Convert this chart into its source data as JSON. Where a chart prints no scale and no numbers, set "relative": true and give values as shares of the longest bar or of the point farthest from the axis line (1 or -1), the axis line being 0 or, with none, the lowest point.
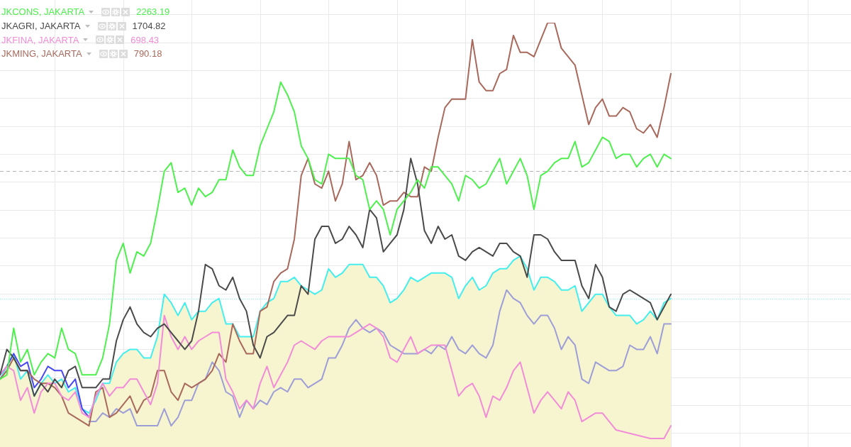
{
  "chart_data": {
    "type": "line",
    "relative": true,
    "marker": "none",
    "grid": true,
    "tick_labels": false,
    "legend": "top left",
    "categories": [
      null,
      null,
      null,
      null,
      null,
      null,
      null,
      null,
      null,
      null,
      null,
      null,
      null,
      null,
      null,
      null,
      null,
      null,
      null,
      null,
      null,
      null,
      null,
      null,
      null,
      null,
      null,
      null,
      null,
      null,
      null,
      null,
      null,
      null,
      null,
      null,
      null,
      null,
      null,
      null,
      null,
      null,
      null,
      null,
      null,
      null,
      null,
      null,
      null,
      null,
      null,
      null,
      null,
      null,
      null,
      null,
      null,
      null,
      null,
      null,
      null,
      null,
      null,
      null,
      null,
      null,
      null,
      null,
      null,
      null,
      null,
      null,
      null,
      null,
      null,
      null,
      null,
      null,
      null,
      null,
      null,
      null,
      null,
      null,
      null,
      null,
      null,
      null,
      null,
      null,
      null,
      null,
      null,
      null,
      null,
      null,
      null,
      null,
      null
    ],
    "series": [
      {
        "name": "JKCONS, JAKARTA",
        "color": "#4ef04e",
        "values": [
          0.16,
          0.17,
          0.28,
          0.2,
          0.23,
          0.17,
          0.2,
          0.22,
          0.21,
          0.28,
          0.23,
          0.22,
          0.17,
          0.17,
          0.17,
          0.21,
          0.29,
          0.44,
          0.48,
          0.41,
          0.46,
          0.45,
          0.48,
          0.56,
          0.65,
          0.67,
          0.6,
          0.61,
          0.57,
          0.61,
          0.59,
          0.6,
          0.63,
          0.63,
          0.7,
          0.66,
          0.64,
          0.64,
          0.71,
          0.75,
          0.79,
          0.86,
          0.83,
          0.79,
          0.71,
          0.68,
          0.63,
          0.62,
          0.69,
          0.68,
          0.68,
          0.68,
          0.64,
          0.63,
          0.56,
          0.58,
          0.56,
          0.5,
          0.56,
          0.58,
          0.6,
          0.63,
          0.61,
          0.66,
          0.66,
          0.64,
          0.62,
          0.58,
          0.64,
          0.63,
          0.61,
          0.62,
          0.65,
          0.68,
          0.62,
          0.65,
          0.68,
          0.64,
          0.56,
          0.64,
          0.65,
          0.67,
          0.68,
          0.68,
          0.72,
          0.66,
          0.67,
          0.7,
          0.73,
          0.72,
          0.68,
          0.69,
          0.69,
          0.66,
          0.68,
          0.69,
          0.66,
          0.69,
          0.68
        ]
      },
      {
        "name": "JKAGRI, JAKARTA",
        "color": "#4a4a4a",
        "values": [
          0.17,
          0.23,
          0.21,
          0.18,
          0.18,
          0.12,
          0.15,
          0.13,
          0.16,
          0.14,
          0.18,
          0.19,
          0.14,
          0.14,
          0.14,
          0.16,
          0.16,
          0.25,
          0.3,
          0.33,
          0.29,
          0.27,
          0.26,
          0.28,
          0.29,
          0.27,
          0.25,
          0.23,
          0.25,
          0.32,
          0.43,
          0.42,
          0.38,
          0.37,
          0.4,
          0.35,
          0.32,
          0.24,
          0.21,
          0.26,
          0.27,
          0.29,
          0.31,
          0.31,
          0.38,
          0.36,
          0.49,
          0.52,
          0.52,
          0.48,
          0.49,
          0.52,
          0.5,
          0.47,
          0.56,
          0.54,
          0.46,
          0.48,
          0.5,
          0.56,
          0.68,
          0.62,
          0.51,
          0.48,
          0.52,
          0.49,
          0.5,
          0.45,
          0.44,
          0.46,
          0.47,
          0.46,
          0.45,
          0.48,
          0.48,
          0.46,
          0.45,
          0.4,
          0.5,
          0.5,
          0.49,
          0.46,
          0.44,
          0.44,
          0.44,
          0.38,
          0.35,
          0.43,
          0.4,
          0.33,
          0.32,
          0.36,
          0.37,
          0.36,
          0.35,
          0.34,
          0.3,
          0.33,
          0.36
        ]
      },
      {
        "name": "JKFINA, JAKARTA",
        "color": "#f28cd8",
        "values": [
          0.17,
          0.19,
          0.18,
          0.11,
          0.14,
          0.08,
          0.13,
          0.15,
          0.15,
          0.12,
          0.11,
          0.13,
          0.08,
          0.07,
          0.12,
          0.15,
          0.12,
          0.14,
          0.14,
          0.16,
          0.16,
          0.13,
          0.1,
          0.15,
          0.31,
          0.26,
          0.23,
          0.26,
          0.23,
          0.25,
          0.26,
          0.27,
          0.27,
          0.16,
          0.13,
          0.09,
          0.11,
          0.09,
          0.15,
          0.19,
          0.14,
          0.17,
          0.2,
          0.24,
          0.25,
          0.24,
          0.23,
          0.25,
          0.26,
          0.26,
          0.26,
          0.26,
          0.27,
          0.28,
          0.29,
          0.28,
          0.26,
          0.21,
          0.2,
          0.23,
          0.26,
          0.22,
          0.23,
          0.24,
          0.24,
          0.24,
          0.18,
          0.12,
          0.14,
          0.15,
          0.12,
          0.07,
          0.12,
          0.11,
          0.14,
          0.18,
          0.2,
          0.14,
          0.08,
          0.11,
          0.13,
          0.11,
          0.09,
          0.13,
          0.11,
          0.06,
          0.07,
          0.08,
          0.08,
          0.06,
          0.04,
          null,
          null,
          null,
          null,
          0.02,
          null,
          0.02,
          0.05
        ]
      },
      {
        "name": "JKMING, JAKARTA",
        "color": "#a8695c",
        "values": [
          0.16,
          0.18,
          0.21,
          0.18,
          0.18,
          0.16,
          0.15,
          0.15,
          0.14,
          0.12,
          0.08,
          0.07,
          0.06,
          0.05,
          0.13,
          0.14,
          0.07,
          0.08,
          0.1,
          0.12,
          0.08,
          0.11,
          0.12,
          0.18,
          0.18,
          0.13,
          0.11,
          0.15,
          0.14,
          0.15,
          0.16,
          0.18,
          0.22,
          0.2,
          0.29,
          0.25,
          0.22,
          0.22,
          0.32,
          0.33,
          0.39,
          0.41,
          0.42,
          0.49,
          0.64,
          0.68,
          0.62,
          0.61,
          0.65,
          0.58,
          0.62,
          0.72,
          0.63,
          0.64,
          0.67,
          0.64,
          0.57,
          0.58,
          0.58,
          0.6,
          0.59,
          0.59,
          0.66,
          0.65,
          0.73,
          0.8,
          0.82,
          0.82,
          0.82,
          0.96,
          0.86,
          0.84,
          0.84,
          0.88,
          0.89,
          0.97,
          0.93,
          0.93,
          0.92,
          0.96,
          1,
          1,
          0.94,
          0.92,
          0.9,
          0.83,
          0.76,
          0.8,
          0.82,
          0.78,
          0.78,
          0.8,
          0.79,
          0.75,
          0.74,
          0.76,
          0.73,
          0.8,
          0.88
        ]
      },
      {
        "type": "area",
        "color": "#44eeee",
        "values": [
          0.16,
          0.19,
          0.22,
          0.16,
          0.18,
          0.12,
          0.15,
          0.17,
          0.15,
          0.16,
          0.13,
          0.14,
          0.09,
          0.08,
          0.11,
          0.15,
          0.15,
          0.2,
          0.22,
          0.23,
          0.23,
          0.21,
          0.21,
          0.26,
          0.36,
          0.34,
          0.31,
          0.34,
          0.3,
          0.32,
          0.32,
          0.34,
          0.35,
          0.29,
          0.29,
          0.26,
          0.26,
          0.26,
          0.32,
          0.34,
          0.35,
          0.39,
          0.39,
          0.4,
          0.38,
          0.37,
          0.36,
          0.37,
          0.42,
          0.4,
          0.41,
          0.43,
          0.43,
          0.43,
          0.4,
          0.4,
          0.38,
          0.34,
          0.35,
          0.37,
          0.4,
          0.39,
          0.4,
          0.41,
          0.41,
          0.41,
          0.4,
          0.35,
          0.38,
          0.4,
          0.37,
          0.38,
          0.41,
          0.42,
          0.42,
          0.44,
          0.45,
          0.42,
          0.37,
          0.4,
          0.4,
          0.39,
          0.37,
          0.37,
          0.38,
          0.32,
          0.34,
          0.36,
          0.36,
          0.33,
          0.31,
          0.31,
          0.31,
          0.29,
          0.3,
          0.32,
          0.3,
          0.34,
          0.35
        ]
      },
      {
        "color": "#9d9dd8",
        "values": [
          null,
          null,
          null,
          null,
          null,
          null,
          null,
          null,
          null,
          null,
          null,
          null,
          null,
          0.06,
          0.06,
          0.08,
          0.07,
          0.09,
          0.08,
          0.09,
          0.05,
          0.05,
          0.05,
          0.05,
          0.09,
          0.05,
          0.07,
          0.11,
          0.11,
          0.15,
          0.16,
          0.2,
          0.18,
          0.13,
          0.12,
          0.07,
          0.11,
          0.09,
          0.11,
          0.1,
          0.13,
          0.14,
          0.13,
          0.16,
          0.16,
          0.14,
          0.15,
          0.16,
          0.21,
          0.21,
          0.24,
          0.28,
          0.3,
          0.28,
          0.27,
          0.28,
          0.27,
          0.24,
          0.23,
          0.22,
          0.22,
          0.22,
          0.23,
          0.22,
          0.24,
          0.23,
          0.26,
          0.23,
          0.22,
          0.24,
          0.22,
          0.21,
          0.24,
          0.32,
          0.37,
          0.35,
          0.34,
          0.31,
          0.29,
          0.31,
          0.31,
          0.28,
          0.23,
          0.26,
          0.24,
          0.16,
          0.15,
          0.2,
          0.19,
          0.18,
          0.18,
          0.19,
          0.24,
          0.23,
          0.23,
          0.26,
          0.22,
          0.29,
          0.29
        ]
      },
      {
        "color": "#4848f0",
        "values": [
          0.17,
          0.19,
          0.22,
          0.19,
          0.2,
          0.14,
          0.16,
          0.19,
          0.18,
          0.18,
          0.14,
          0.16,
          0.09,
          0.07,
          null,
          null,
          null,
          null,
          null,
          null,
          null,
          null,
          null,
          null,
          null,
          null,
          null,
          null,
          null,
          null,
          null,
          null,
          null,
          null,
          null,
          null,
          null,
          null,
          null,
          null,
          null,
          null,
          null,
          null,
          null,
          null,
          null,
          null,
          null,
          null,
          null,
          null,
          null,
          null,
          null,
          null,
          null,
          null,
          null,
          null,
          null,
          null,
          null,
          null,
          null,
          null,
          null,
          null,
          null,
          null,
          null,
          null,
          null,
          null,
          null,
          null,
          null,
          null,
          null,
          null,
          null,
          null,
          null,
          null,
          null,
          null,
          null,
          null,
          null,
          null,
          null,
          null,
          null,
          null,
          null,
          null,
          null,
          null,
          null
        ]
      }
    ],
    "ref_lines": [
      {
        "axis": "y",
        "value": 0.65,
        "color": "#b4b4b4",
        "line_style": "dashed"
      },
      {
        "axis": "y",
        "value": 0.35,
        "color": "#7af6f6",
        "line_style": "dotted"
      }
    ],
    "annotations": [
      "2263.19",
      "1704.82",
      "698.43",
      "790.18"
    ]
  }
}
